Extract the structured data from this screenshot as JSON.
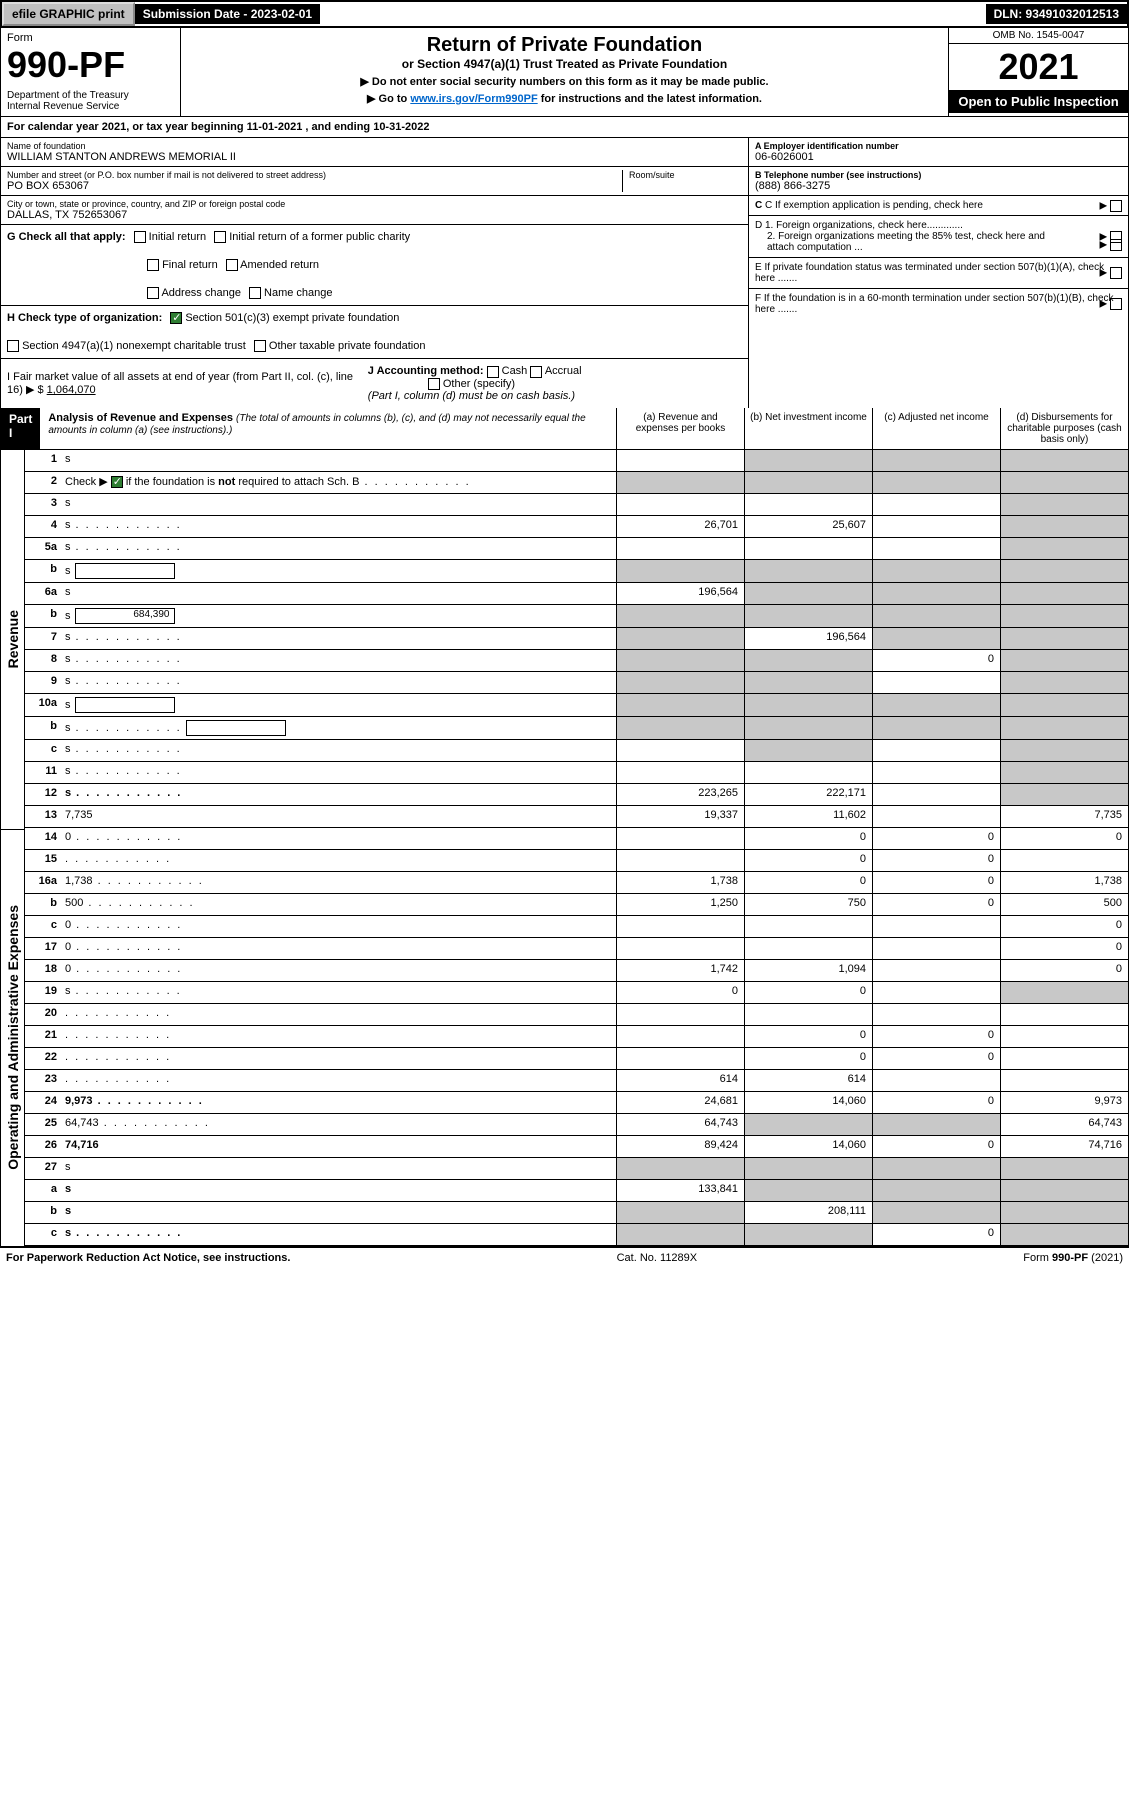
{
  "topbar": {
    "efile": "efile GRAPHIC print",
    "sub_label": "Submission Date - 2023-02-01",
    "dln_label": "DLN: 93491032012513"
  },
  "header": {
    "form_label": "Form",
    "form_no": "990-PF",
    "dept": "Department of the Treasury\nInternal Revenue Service",
    "title": "Return of Private Foundation",
    "subtitle": "or Section 4947(a)(1) Trust Treated as Private Foundation",
    "note1": "▶ Do not enter social security numbers on this form as it may be made public.",
    "note2_pre": "▶ Go to ",
    "note2_link": "www.irs.gov/Form990PF",
    "note2_post": " for instructions and the latest information.",
    "omb": "OMB No. 1545-0047",
    "year": "2021",
    "open": "Open to Public Inspection"
  },
  "cal": "For calendar year 2021, or tax year beginning 11-01-2021              , and ending 10-31-2022",
  "name_lbl": "Name of foundation",
  "name_val": "WILLIAM STANTON ANDREWS MEMORIAL II",
  "addr_lbl": "Number and street (or P.O. box number if mail is not delivered to street address)",
  "addr_val": "PO BOX 653067",
  "room_lbl": "Room/suite",
  "city_lbl": "City or town, state or province, country, and ZIP or foreign postal code",
  "city_val": "DALLAS, TX  752653067",
  "ein_lbl": "A Employer identification number",
  "ein_val": "06-6026001",
  "tel_lbl": "B Telephone number (see instructions)",
  "tel_val": "(888) 866-3275",
  "c_lbl": "C If exemption application is pending, check here",
  "g_lbl": "G Check all that apply:",
  "g_opts": [
    "Initial return",
    "Initial return of a former public charity",
    "Final return",
    "Amended return",
    "Address change",
    "Name change"
  ],
  "h_lbl": "H Check type of organization:",
  "h_opt1": "Section 501(c)(3) exempt private foundation",
  "h_opt2": "Section 4947(a)(1) nonexempt charitable trust",
  "h_opt3": "Other taxable private foundation",
  "i_lbl": "I Fair market value of all assets at end of year (from Part II, col. (c), line 16) ▶ $",
  "i_val": "1,064,070",
  "j_lbl": "J Accounting method:",
  "j_opts": [
    "Cash",
    "Accrual",
    "Other (specify)"
  ],
  "j_note": "(Part I, column (d) must be on cash basis.)",
  "d1": "D 1. Foreign organizations, check here.............",
  "d2": "2. Foreign organizations meeting the 85% test, check here and attach computation ...",
  "e_lbl": "E   If private foundation status was terminated under section 507(b)(1)(A), check here .......",
  "f_lbl": "F   If the foundation is in a 60-month termination under section 507(b)(1)(B), check here .......",
  "part1": {
    "label": "Part I",
    "title": "Analysis of Revenue and Expenses",
    "note": "(The total of amounts in columns (b), (c), and (d) may not necessarily equal the amounts in column (a) (see instructions).)",
    "col_a": "(a)   Revenue and expenses per books",
    "col_b": "(b)   Net investment income",
    "col_c": "(c)  Adjusted net income",
    "col_d": "(d)   Disbursements for charitable purposes (cash basis only)"
  },
  "side_rev": "Revenue",
  "side_exp": "Operating and Administrative Expenses",
  "rows": [
    {
      "n": "1",
      "d": "s",
      "a": "",
      "b": "s",
      "c": "s"
    },
    {
      "n": "2",
      "d": "s",
      "dots": true,
      "a": "s",
      "b": "s",
      "c": "s",
      "bold_not": true
    },
    {
      "n": "3",
      "d": "s",
      "a": "",
      "b": "",
      "c": ""
    },
    {
      "n": "4",
      "d": "s",
      "dots": true,
      "a": "26,701",
      "b": "25,607",
      "c": ""
    },
    {
      "n": "5a",
      "d": "s",
      "dots": true,
      "a": "",
      "b": "",
      "c": ""
    },
    {
      "n": "b",
      "d": "s",
      "box": true,
      "a": "s",
      "b": "s",
      "c": "s"
    },
    {
      "n": "6a",
      "d": "s",
      "a": "196,564",
      "b": "s",
      "c": "s"
    },
    {
      "n": "b",
      "d": "s",
      "box": true,
      "boxval": "684,390",
      "a": "s",
      "b": "s",
      "c": "s"
    },
    {
      "n": "7",
      "d": "s",
      "dots": true,
      "a": "s",
      "b": "196,564",
      "c": "s"
    },
    {
      "n": "8",
      "d": "s",
      "dots": true,
      "a": "s",
      "b": "s",
      "c": "0"
    },
    {
      "n": "9",
      "d": "s",
      "dots": true,
      "a": "s",
      "b": "s",
      "c": ""
    },
    {
      "n": "10a",
      "d": "s",
      "box": true,
      "a": "s",
      "b": "s",
      "c": "s"
    },
    {
      "n": "b",
      "d": "s",
      "dots": true,
      "box": true,
      "a": "s",
      "b": "s",
      "c": "s"
    },
    {
      "n": "c",
      "d": "s",
      "dots": true,
      "a": "",
      "b": "s",
      "c": ""
    },
    {
      "n": "11",
      "d": "s",
      "dots": true,
      "a": "",
      "b": "",
      "c": ""
    },
    {
      "n": "12",
      "d": "s",
      "dots": true,
      "bold": true,
      "a": "223,265",
      "b": "222,171",
      "c": ""
    },
    {
      "n": "13",
      "d": "7,735",
      "a": "19,337",
      "b": "11,602",
      "c": ""
    },
    {
      "n": "14",
      "d": "0",
      "dots": true,
      "a": "",
      "b": "0",
      "c": "0"
    },
    {
      "n": "15",
      "d": "",
      "dots": true,
      "a": "",
      "b": "0",
      "c": "0"
    },
    {
      "n": "16a",
      "d": "1,738",
      "dots": true,
      "a": "1,738",
      "b": "0",
      "c": "0"
    },
    {
      "n": "b",
      "d": "500",
      "dots": true,
      "a": "1,250",
      "b": "750",
      "c": "0"
    },
    {
      "n": "c",
      "d": "0",
      "dots": true,
      "a": "",
      "b": "",
      "c": ""
    },
    {
      "n": "17",
      "d": "0",
      "dots": true,
      "a": "",
      "b": "",
      "c": ""
    },
    {
      "n": "18",
      "d": "0",
      "dots": true,
      "a": "1,742",
      "b": "1,094",
      "c": ""
    },
    {
      "n": "19",
      "d": "s",
      "dots": true,
      "a": "0",
      "b": "0",
      "c": ""
    },
    {
      "n": "20",
      "d": "",
      "dots": true,
      "a": "",
      "b": "",
      "c": ""
    },
    {
      "n": "21",
      "d": "",
      "dots": true,
      "a": "",
      "b": "0",
      "c": "0"
    },
    {
      "n": "22",
      "d": "",
      "dots": true,
      "a": "",
      "b": "0",
      "c": "0"
    },
    {
      "n": "23",
      "d": "",
      "dots": true,
      "a": "614",
      "b": "614",
      "c": ""
    },
    {
      "n": "24",
      "d": "9,973",
      "dots": true,
      "bold": true,
      "a": "24,681",
      "b": "14,060",
      "c": "0"
    },
    {
      "n": "25",
      "d": "64,743",
      "dots": true,
      "a": "64,743",
      "b": "s",
      "c": "s"
    },
    {
      "n": "26",
      "d": "74,716",
      "bold": true,
      "a": "89,424",
      "b": "14,060",
      "c": "0"
    },
    {
      "n": "27",
      "d": "s",
      "a": "s",
      "b": "s",
      "c": "s"
    },
    {
      "n": "a",
      "d": "s",
      "bold": true,
      "a": "133,841",
      "b": "s",
      "c": "s"
    },
    {
      "n": "b",
      "d": "s",
      "bold": true,
      "a": "s",
      "b": "208,111",
      "c": "s"
    },
    {
      "n": "c",
      "d": "s",
      "dots": true,
      "bold": true,
      "a": "s",
      "b": "s",
      "c": "0"
    }
  ],
  "footer": {
    "left": "For Paperwork Reduction Act Notice, see instructions.",
    "mid": "Cat. No. 11289X",
    "right": "Form 990-PF (2021)"
  }
}
